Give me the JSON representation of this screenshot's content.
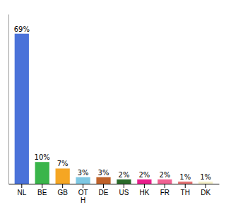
{
  "chart_data": {
    "type": "bar",
    "categories": [
      "NL",
      "BE",
      "GB",
      "OT\nH",
      "DE",
      "US",
      "HK",
      "FR",
      "TH",
      "DK"
    ],
    "values": [
      69,
      10,
      7,
      3,
      3,
      2,
      2,
      2,
      1,
      1
    ],
    "value_labels": [
      "69%",
      "10%",
      "7%",
      "3%",
      "3%",
      "2%",
      "2%",
      "2%",
      "1%",
      "1%"
    ],
    "colors": [
      "#4a72d9",
      "#3ab54a",
      "#f5a623",
      "#7ec8e3",
      "#c0622a",
      "#2a6b2a",
      "#e91e8c",
      "#f06292",
      "#e57373",
      "#f5f0c8"
    ],
    "ylim": [
      0,
      78
    ],
    "data_labels": true,
    "tick_labels": "x"
  }
}
